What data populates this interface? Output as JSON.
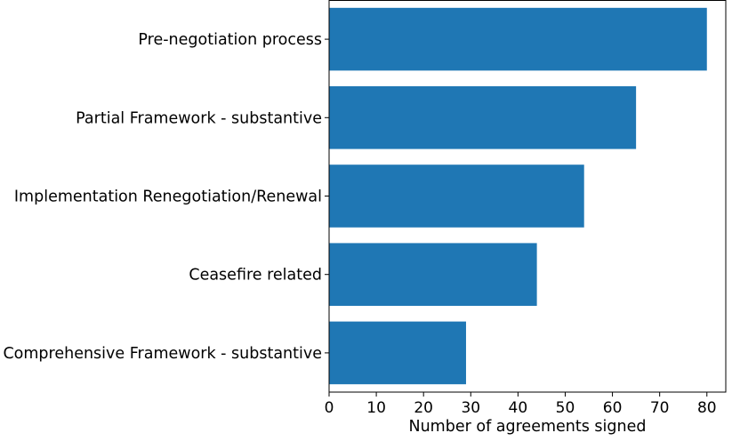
{
  "chart_data": {
    "type": "bar",
    "orientation": "horizontal",
    "categories": [
      "Pre-negotiation process",
      "Partial Framework - substantive",
      "Implementation Renegotiation/Renewal",
      "Ceasefire related",
      "Comprehensive Framework - substantive"
    ],
    "values": [
      80,
      65,
      54,
      44,
      29
    ],
    "title": "",
    "xlabel": "Number of agreements signed",
    "ylabel": "",
    "xlim": [
      0,
      84
    ],
    "xticks": [
      "0",
      "10",
      "20",
      "30",
      "40",
      "50",
      "60",
      "70",
      "80"
    ],
    "bar_color": "#1f77b4",
    "grid": false,
    "legend": "none"
  }
}
